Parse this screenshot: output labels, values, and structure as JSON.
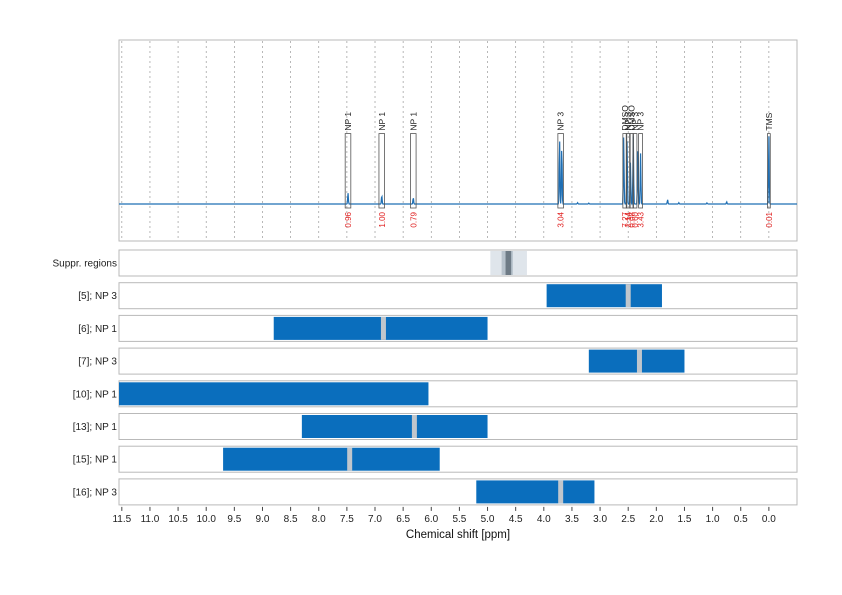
{
  "chart_data": {
    "type": "nmr-spectrum-with-range-bars",
    "xlabel": "Chemical shift [ppm]",
    "xlim": [
      11.55,
      -0.5
    ],
    "x_ticks": [
      11.5,
      11.0,
      10.5,
      10.0,
      9.5,
      9.0,
      8.5,
      8.0,
      7.5,
      7.0,
      6.5,
      6.0,
      5.5,
      5.0,
      4.5,
      4.0,
      3.5,
      3.0,
      2.5,
      2.0,
      1.5,
      1.0,
      0.5,
      0.0
    ],
    "x_tick_labels": [
      "11.5",
      "11.0",
      "10.5",
      "10.0",
      "9.5",
      "9.0",
      "8.5",
      "8.0",
      "7.5",
      "7.0",
      "6.5",
      "6.0",
      "5.5",
      "5.0",
      "4.5",
      "4.0",
      "3.5",
      "3.0",
      "2.5",
      "2.0",
      "1.5",
      "1.0",
      "0.5",
      "0.0"
    ],
    "spectrum": {
      "color": "#1f6fb4",
      "peaks": [
        {
          "x": 7.48,
          "height": 0.1
        },
        {
          "x": 6.88,
          "height": 0.08
        },
        {
          "x": 6.32,
          "height": 0.06
        },
        {
          "x": 3.72,
          "height": 0.62
        },
        {
          "x": 3.68,
          "height": 0.55
        },
        {
          "x": 2.58,
          "height": 0.62
        },
        {
          "x": 2.52,
          "height": 0.58
        },
        {
          "x": 2.46,
          "height": 0.38
        },
        {
          "x": 2.41,
          "height": 0.62
        },
        {
          "x": 2.33,
          "height": 0.5
        },
        {
          "x": 2.28,
          "height": 0.46
        },
        {
          "x": 3.4,
          "height": 0.012
        },
        {
          "x": 3.2,
          "height": 0.008
        },
        {
          "x": 1.8,
          "height": 0.04
        },
        {
          "x": 1.6,
          "height": 0.012
        },
        {
          "x": 1.1,
          "height": 0.01
        },
        {
          "x": 0.75,
          "height": 0.02
        },
        {
          "x": 0.0,
          "height": 0.62
        }
      ]
    },
    "peak_annotations": [
      {
        "x": 7.48,
        "width": 0.1,
        "label": "NP 1",
        "integral": "0.96",
        "box_top": 0.64
      },
      {
        "x": 6.88,
        "width": 0.1,
        "label": "NP 1",
        "integral": "1.00",
        "box_top": 0.64
      },
      {
        "x": 6.32,
        "width": 0.1,
        "label": "NP 1",
        "integral": "0.79",
        "box_top": 0.64
      },
      {
        "x": 3.7,
        "width": 0.1,
        "label": "NP 3",
        "integral": "3.04",
        "box_top": 0.64
      },
      {
        "x": 2.56,
        "width": 0.07,
        "label": "DMSO",
        "integral": "7.27",
        "box_top": 0.64
      },
      {
        "x": 2.5,
        "width": 0.07,
        "label": "NP 3",
        "integral": "2.14",
        "box_top": 0.64
      },
      {
        "x": 2.44,
        "width": 0.07,
        "label": "DMSO",
        "integral": "0.08",
        "box_top": 0.64
      },
      {
        "x": 2.38,
        "width": 0.07,
        "label": "NP 3",
        "integral": "0.60",
        "box_top": 0.64
      },
      {
        "x": 2.28,
        "width": 0.07,
        "label": "NP 3",
        "integral": "3.43",
        "box_top": 0.64
      },
      {
        "x": 0.0,
        "width": 0.05,
        "label": "TMS",
        "integral": "0.01",
        "box_top": 0.64
      }
    ],
    "suppressed_regions": {
      "label": "Suppr. regions",
      "outer": [
        4.95,
        4.3
      ],
      "inner": [
        4.75,
        4.55
      ],
      "core": [
        4.68,
        4.58
      ]
    },
    "rows": [
      {
        "label": "[5]; NP 3",
        "range": [
          3.95,
          1.9
        ],
        "marker": 2.5
      },
      {
        "label": "[6]; NP 1",
        "range": [
          8.8,
          5.0
        ],
        "marker": 6.85
      },
      {
        "label": "[7]; NP 3",
        "range": [
          3.2,
          1.5
        ],
        "marker": 2.3
      },
      {
        "label": "[10]; NP 1",
        "range": [
          11.55,
          6.05
        ],
        "marker": null
      },
      {
        "label": "[13]; NP 1",
        "range": [
          8.3,
          5.0
        ],
        "marker": 6.3
      },
      {
        "label": "[15]; NP 1",
        "range": [
          9.7,
          5.85
        ],
        "marker": 7.45
      },
      {
        "label": "[16]; NP 3",
        "range": [
          5.2,
          3.1
        ],
        "marker": 3.7
      }
    ],
    "colors": {
      "bar": "#0a6ebd",
      "marker": "#c0c6cc",
      "suppr_outer": "#dfe5eb",
      "suppr_inner": "#b7c2cc",
      "suppr_core": "#6e7b86",
      "integral": "#e02020"
    },
    "grid": true
  }
}
